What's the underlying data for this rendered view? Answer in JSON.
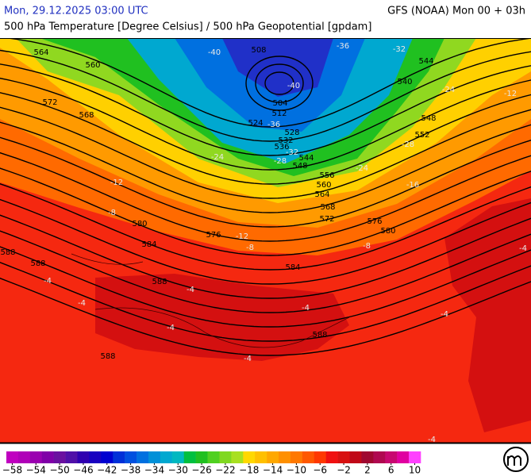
{
  "header": {
    "datetime": "Mon, 29.12.2025 03:00 UTC",
    "model": "GFS (NOAA) Mon 00 + 03h",
    "subtitle": "500 hPa Temperature [Degree Celsius] / 500 hPa Geopotential [gpdam]"
  },
  "map": {
    "geopotential_labels": [
      564,
      560,
      572,
      568,
      508,
      504,
      512,
      524,
      528,
      532,
      536,
      544,
      548,
      556,
      560,
      564,
      568,
      572,
      576,
      580,
      584,
      588,
      588,
      588,
      588,
      588,
      544,
      540,
      548,
      552,
      576,
      580,
      584
    ],
    "temperature_labels": [
      -40,
      -40,
      -36,
      -32,
      -36,
      -32,
      -28,
      -24,
      -24,
      -28,
      -24,
      -16,
      -12,
      -8,
      -12,
      -8,
      -8,
      -4,
      -4,
      -4,
      -4,
      -4,
      -4,
      -4,
      -4,
      -4,
      -12
    ]
  },
  "legend": {
    "lim": [
      -58,
      10
    ],
    "colors": [
      "#c000c0",
      "#b000b8",
      "#9a00b0",
      "#8000a8",
      "#6a10a0",
      "#5010a8",
      "#3000b0",
      "#1800c0",
      "#0000d0",
      "#0030d8",
      "#0050e0",
      "#0070e0",
      "#0090d8",
      "#00a8d0",
      "#00b8c0",
      "#00c040",
      "#20c020",
      "#50d020",
      "#80d820",
      "#a8e020",
      "#ffd800",
      "#ffc000",
      "#ffa800",
      "#ff9000",
      "#ff7800",
      "#ff5800",
      "#ff3800",
      "#f01010",
      "#d81010",
      "#c00818",
      "#a00830",
      "#b00850",
      "#c80870",
      "#e000a0",
      "#ff40ff"
    ],
    "ticks": [
      {
        "value": -58,
        "label": "−58"
      },
      {
        "value": -54,
        "label": "−54"
      },
      {
        "value": -50,
        "label": "−50"
      },
      {
        "value": -46,
        "label": "−46"
      },
      {
        "value": -42,
        "label": "−42"
      },
      {
        "value": -38,
        "label": "−38"
      },
      {
        "value": -34,
        "label": "−34"
      },
      {
        "value": -30,
        "label": "−30"
      },
      {
        "value": -26,
        "label": "−26"
      },
      {
        "value": -22,
        "label": "−22"
      },
      {
        "value": -18,
        "label": "−18"
      },
      {
        "value": -14,
        "label": "−14"
      },
      {
        "value": -10,
        "label": "−10"
      },
      {
        "value": -6,
        "label": "−6"
      },
      {
        "value": -2,
        "label": "−2"
      },
      2,
      6,
      10
    ]
  }
}
